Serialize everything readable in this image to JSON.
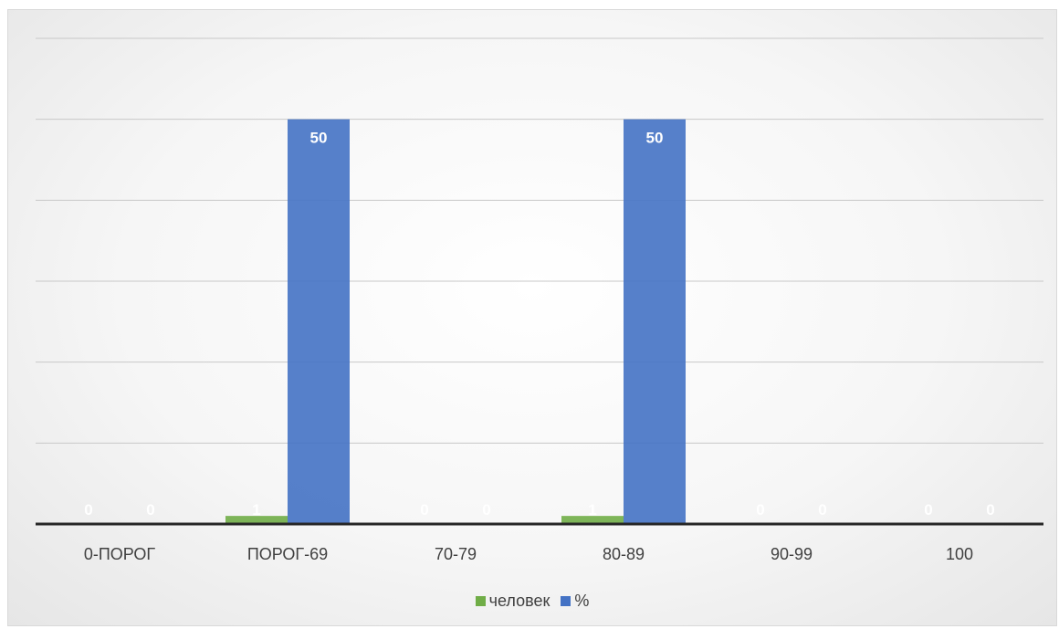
{
  "chart_data": {
    "type": "bar",
    "categories": [
      "0-ПОРОГ",
      "ПОРОГ-69",
      "70-79",
      "80-89",
      "90-99",
      "100"
    ],
    "series": [
      {
        "name": "человек",
        "values": [
          0,
          1,
          0,
          1,
          0,
          0
        ],
        "color": "#70ad47"
      },
      {
        "name": "%",
        "values": [
          0,
          50,
          0,
          50,
          0,
          0
        ],
        "color": "#4472c4"
      }
    ],
    "ylim": [
      0,
      60
    ],
    "grid": true,
    "legend_position": "bottom",
    "data_labels": true,
    "title": "",
    "xlabel": "",
    "ylabel": ""
  }
}
